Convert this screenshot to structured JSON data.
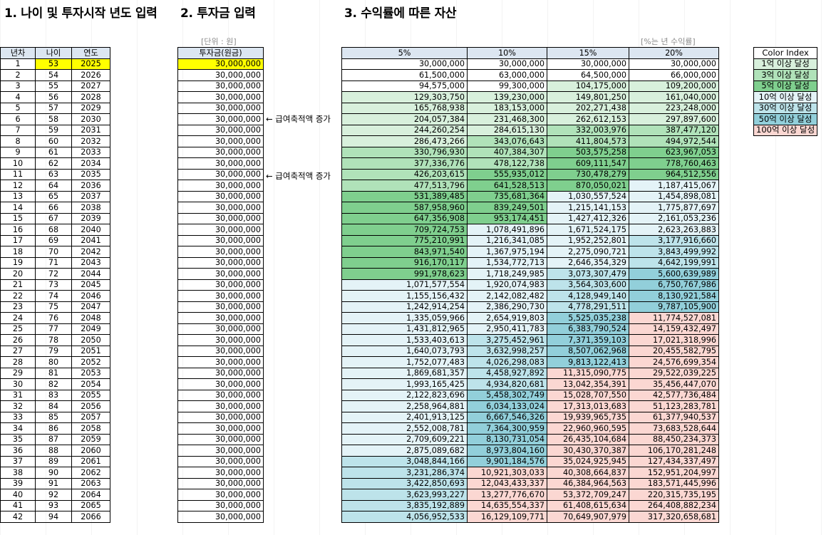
{
  "titles": {
    "section1": "1. 나이 및 투자시작 년도 입력",
    "section2": "2. 투자금 입력",
    "section3": "3. 수익률에 따른 자산"
  },
  "notes": {
    "unit": "[단위 : 원]",
    "rate": "[%는 년 수익률]",
    "arrow1": "← 급여축적액 증가",
    "arrow2": "← 급여축적액 증가"
  },
  "colors": {
    "header": "#dce6f1",
    "yellow": "#ffff00",
    "levels": [
      "#ffffff",
      "#d8f0dc",
      "#b0e2b9",
      "#7fcf8e",
      "#e4f3f7",
      "#bde3ea",
      "#92cfda",
      "#fbd7d2"
    ]
  },
  "table1": {
    "headers": [
      "년차",
      "나이",
      "연도"
    ],
    "rows": [
      [
        "1",
        "53",
        "2025"
      ],
      [
        "2",
        "54",
        "2026"
      ],
      [
        "3",
        "55",
        "2027"
      ],
      [
        "4",
        "56",
        "2028"
      ],
      [
        "5",
        "57",
        "2029"
      ],
      [
        "6",
        "58",
        "2030"
      ],
      [
        "7",
        "59",
        "2031"
      ],
      [
        "8",
        "60",
        "2032"
      ],
      [
        "9",
        "61",
        "2033"
      ],
      [
        "10",
        "62",
        "2034"
      ],
      [
        "11",
        "63",
        "2035"
      ],
      [
        "12",
        "64",
        "2036"
      ],
      [
        "13",
        "65",
        "2037"
      ],
      [
        "14",
        "66",
        "2038"
      ],
      [
        "15",
        "67",
        "2039"
      ],
      [
        "16",
        "68",
        "2040"
      ],
      [
        "17",
        "69",
        "2041"
      ],
      [
        "18",
        "70",
        "2042"
      ],
      [
        "19",
        "71",
        "2043"
      ],
      [
        "20",
        "72",
        "2044"
      ],
      [
        "21",
        "73",
        "2045"
      ],
      [
        "22",
        "74",
        "2046"
      ],
      [
        "23",
        "75",
        "2047"
      ],
      [
        "24",
        "76",
        "2048"
      ],
      [
        "25",
        "77",
        "2049"
      ],
      [
        "26",
        "78",
        "2050"
      ],
      [
        "27",
        "79",
        "2051"
      ],
      [
        "28",
        "80",
        "2052"
      ],
      [
        "29",
        "81",
        "2053"
      ],
      [
        "30",
        "82",
        "2054"
      ],
      [
        "31",
        "83",
        "2055"
      ],
      [
        "32",
        "84",
        "2056"
      ],
      [
        "33",
        "85",
        "2057"
      ],
      [
        "34",
        "86",
        "2058"
      ],
      [
        "35",
        "87",
        "2059"
      ],
      [
        "36",
        "88",
        "2060"
      ],
      [
        "37",
        "89",
        "2061"
      ],
      [
        "38",
        "90",
        "2062"
      ],
      [
        "39",
        "91",
        "2063"
      ],
      [
        "40",
        "92",
        "2064"
      ],
      [
        "41",
        "93",
        "2065"
      ],
      [
        "42",
        "94",
        "2066"
      ]
    ]
  },
  "table2": {
    "header": "투자금(원금)",
    "rows": [
      "30,000,000",
      "30,000,000",
      "30,000,000",
      "30,000,000",
      "30,000,000",
      "30,000,000",
      "30,000,000",
      "30,000,000",
      "30,000,000",
      "30,000,000",
      "30,000,000",
      "30,000,000",
      "30,000,000",
      "30,000,000",
      "30,000,000",
      "30,000,000",
      "30,000,000",
      "30,000,000",
      "30,000,000",
      "30,000,000",
      "30,000,000",
      "30,000,000",
      "30,000,000",
      "30,000,000",
      "30,000,000",
      "30,000,000",
      "30,000,000",
      "30,000,000",
      "30,000,000",
      "30,000,000",
      "30,000,000",
      "30,000,000",
      "30,000,000",
      "30,000,000",
      "30,000,000",
      "30,000,000",
      "30,000,000",
      "30,000,000",
      "30,000,000",
      "30,000,000",
      "30,000,000",
      "30,000,000"
    ]
  },
  "table3": {
    "headers": [
      "5%",
      "10%",
      "15%",
      "20%"
    ],
    "rows": [
      [
        "30,000,000",
        "30,000,000",
        "30,000,000",
        "30,000,000"
      ],
      [
        "61,500,000",
        "63,000,000",
        "64,500,000",
        "66,000,000"
      ],
      [
        "94,575,000",
        "99,300,000",
        "104,175,000",
        "109,200,000"
      ],
      [
        "129,303,750",
        "139,230,000",
        "149,801,250",
        "161,040,000"
      ],
      [
        "165,768,938",
        "183,153,000",
        "202,271,438",
        "223,248,000"
      ],
      [
        "204,057,384",
        "231,468,300",
        "262,612,153",
        "297,897,600"
      ],
      [
        "244,260,254",
        "284,615,130",
        "332,003,976",
        "387,477,120"
      ],
      [
        "286,473,266",
        "343,076,643",
        "411,804,573",
        "494,972,544"
      ],
      [
        "330,796,930",
        "407,384,307",
        "503,575,258",
        "623,967,053"
      ],
      [
        "377,336,776",
        "478,122,738",
        "609,111,547",
        "778,760,463"
      ],
      [
        "426,203,615",
        "555,935,012",
        "730,478,279",
        "964,512,556"
      ],
      [
        "477,513,796",
        "641,528,513",
        "870,050,021",
        "1,187,415,067"
      ],
      [
        "531,389,485",
        "735,681,364",
        "1,030,557,524",
        "1,454,898,081"
      ],
      [
        "587,958,960",
        "839,249,501",
        "1,215,141,153",
        "1,775,877,697"
      ],
      [
        "647,356,908",
        "953,174,451",
        "1,427,412,326",
        "2,161,053,236"
      ],
      [
        "709,724,753",
        "1,078,491,896",
        "1,671,524,175",
        "2,623,263,883"
      ],
      [
        "775,210,991",
        "1,216,341,085",
        "1,952,252,801",
        "3,177,916,660"
      ],
      [
        "843,971,540",
        "1,367,975,194",
        "2,275,090,721",
        "3,843,499,992"
      ],
      [
        "916,170,117",
        "1,534,772,713",
        "2,646,354,329",
        "4,642,199,991"
      ],
      [
        "991,978,623",
        "1,718,249,985",
        "3,073,307,479",
        "5,600,639,989"
      ],
      [
        "1,071,577,554",
        "1,920,074,983",
        "3,564,303,600",
        "6,750,767,986"
      ],
      [
        "1,155,156,432",
        "2,142,082,482",
        "4,128,949,140",
        "8,130,921,584"
      ],
      [
        "1,242,914,254",
        "2,386,290,730",
        "4,778,291,511",
        "9,787,105,900"
      ],
      [
        "1,335,059,966",
        "2,654,919,803",
        "5,525,035,238",
        "11,774,527,081"
      ],
      [
        "1,431,812,965",
        "2,950,411,783",
        "6,383,790,524",
        "14,159,432,497"
      ],
      [
        "1,533,403,613",
        "3,275,452,961",
        "7,371,359,103",
        "17,021,318,996"
      ],
      [
        "1,640,073,793",
        "3,632,998,257",
        "8,507,062,968",
        "20,455,582,795"
      ],
      [
        "1,752,077,483",
        "4,026,298,083",
        "9,813,122,413",
        "24,576,699,354"
      ],
      [
        "1,869,681,357",
        "4,458,927,892",
        "11,315,090,775",
        "29,522,039,225"
      ],
      [
        "1,993,165,425",
        "4,934,820,681",
        "13,042,354,391",
        "35,456,447,070"
      ],
      [
        "2,122,823,696",
        "5,458,302,749",
        "15,028,707,550",
        "42,577,736,484"
      ],
      [
        "2,258,964,881",
        "6,034,133,024",
        "17,313,013,683",
        "51,123,283,781"
      ],
      [
        "2,401,913,125",
        "6,667,546,326",
        "19,939,965,735",
        "61,377,940,537"
      ],
      [
        "2,552,008,781",
        "7,364,300,959",
        "22,960,960,595",
        "73,683,528,644"
      ],
      [
        "2,709,609,221",
        "8,130,731,054",
        "26,435,104,684",
        "88,450,234,373"
      ],
      [
        "2,875,089,682",
        "8,973,804,160",
        "30,430,370,387",
        "106,170,281,248"
      ],
      [
        "3,048,844,166",
        "9,901,184,576",
        "35,024,925,945",
        "127,434,337,497"
      ],
      [
        "3,231,286,374",
        "10,921,303,033",
        "40,308,664,837",
        "152,951,204,997"
      ],
      [
        "3,422,850,693",
        "12,043,433,337",
        "46,384,964,563",
        "183,571,445,996"
      ],
      [
        "3,623,993,227",
        "13,277,776,670",
        "53,372,709,247",
        "220,315,735,195"
      ],
      [
        "3,835,192,889",
        "14,635,554,337",
        "61,408,615,634",
        "264,408,882,234"
      ],
      [
        "4,056,952,533",
        "16,129,109,771",
        "70,649,907,979",
        "317,320,658,681"
      ]
    ]
  },
  "legend": {
    "title": "Color Index",
    "items": [
      "1억 이상 달성",
      "3억 이상 달성",
      "5억 이상 달성",
      "10억 이상 달성",
      "30억 이상 달성",
      "50억 이상 달성",
      "100억 이상 달성"
    ]
  }
}
